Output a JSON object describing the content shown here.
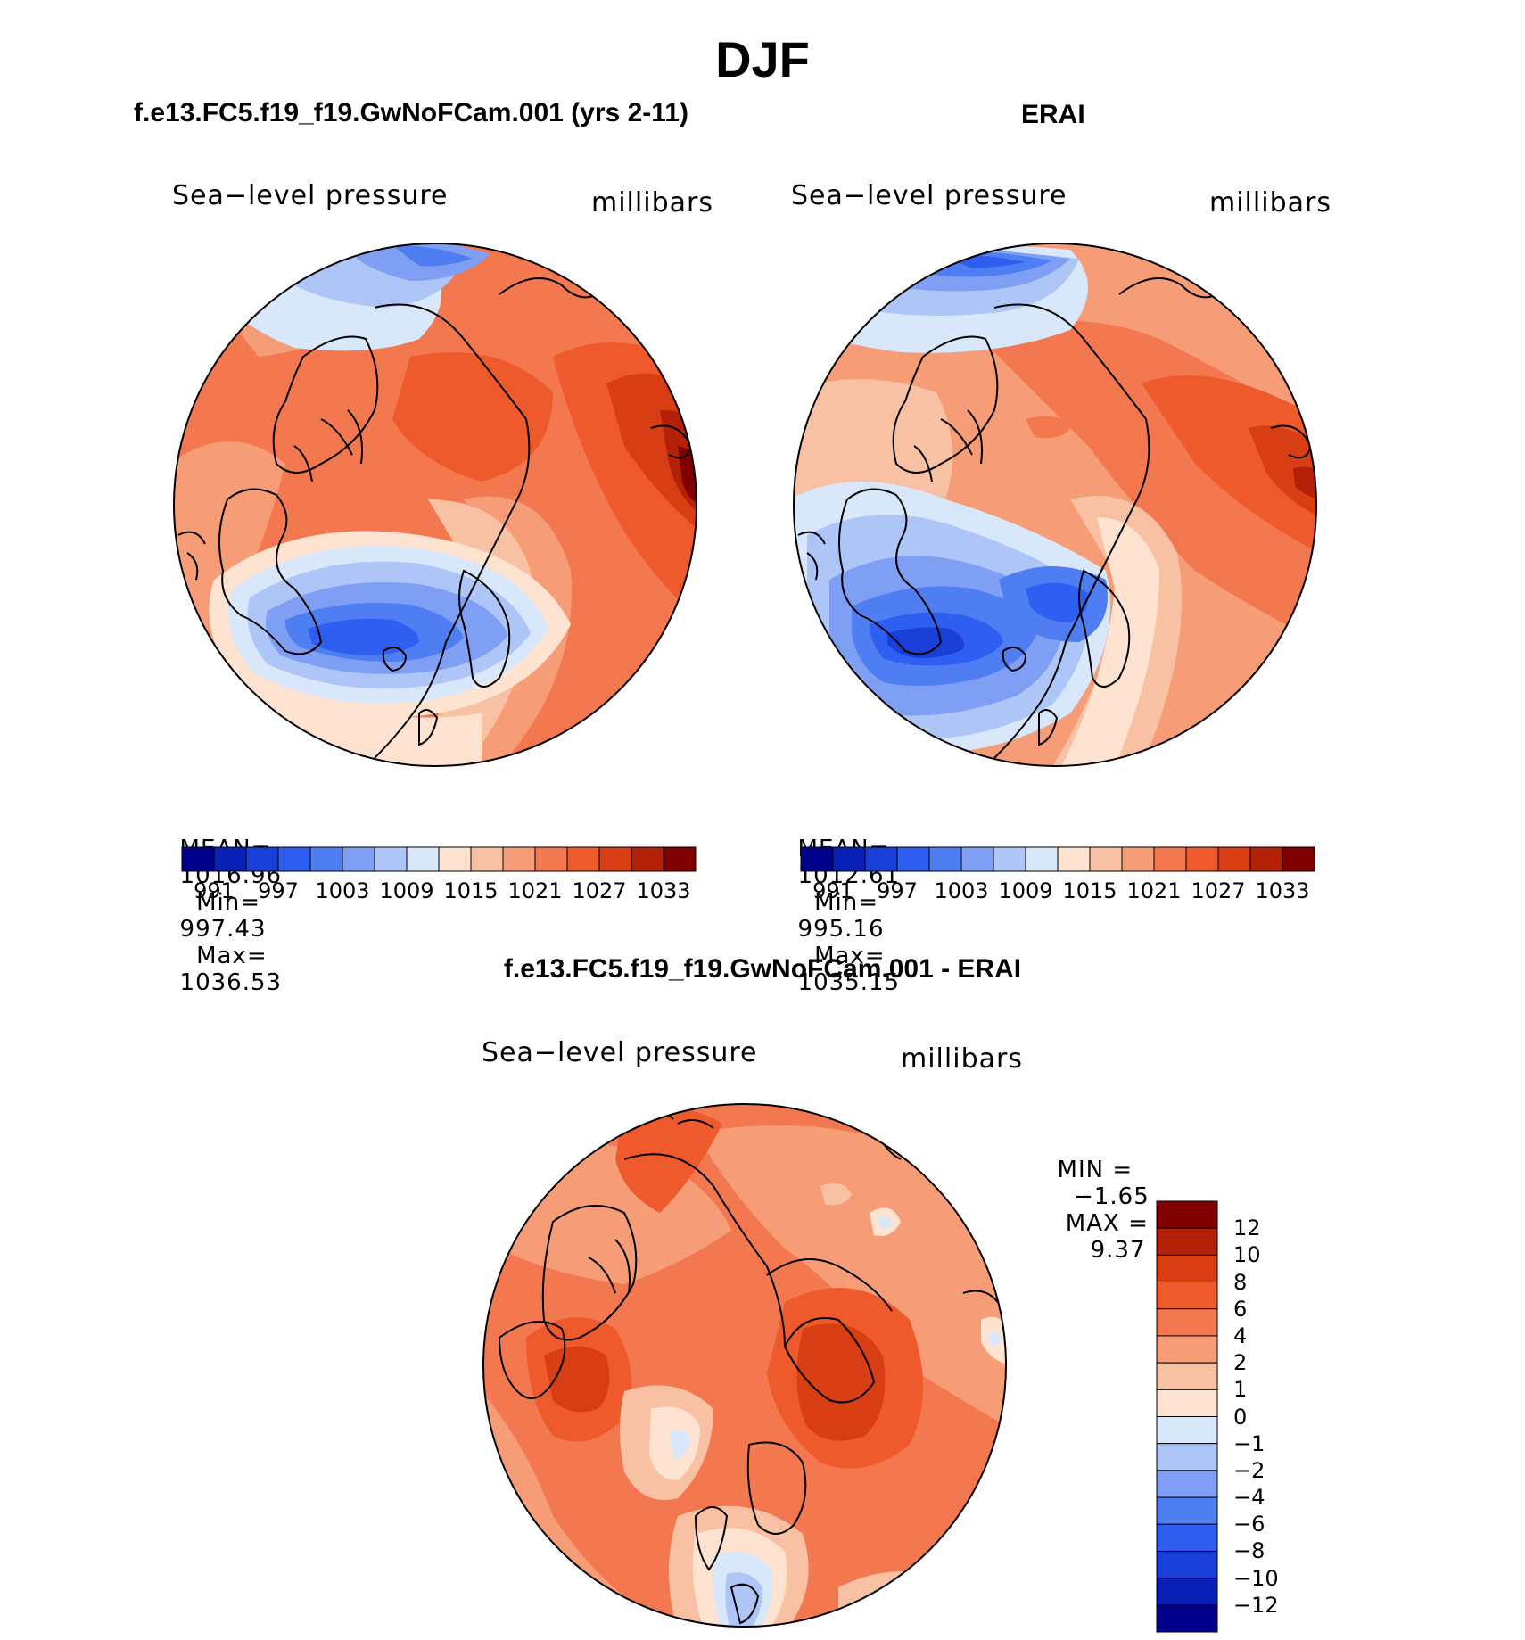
{
  "main_title": "DJF",
  "panels": {
    "left": {
      "title": "f.e13.FC5.f19_f19.GwNoFCam.001 (yrs 2-11)",
      "variable": "Sea−level pressure",
      "units": "millibars",
      "stats": {
        "mean_label": "MEAN=",
        "mean_value": "1016.96",
        "min_label": "Min=",
        "min_value": "997.43",
        "max_label": "Max=",
        "max_value": "1036.53"
      }
    },
    "right": {
      "title": "ERAI",
      "variable": "Sea−level pressure",
      "units": "millibars",
      "stats": {
        "mean_label": "MEAN=",
        "mean_value": "1012.61",
        "min_label": "Min=",
        "min_value": "995.16",
        "max_label": "Max=",
        "max_value": "1035.15"
      }
    },
    "diff": {
      "title": "f.e13.FC5.f19_f19.GwNoFCam.001 - ERAI",
      "variable": "Sea−level pressure",
      "units": "millibars",
      "minmax": {
        "min_label": "MIN =",
        "min_value": "−1.65",
        "max_label": "MAX =",
        "max_value": "9.37"
      }
    }
  },
  "abs_colorbar": {
    "colors": [
      "#00008b",
      "#0a1fb5",
      "#1a3fd8",
      "#2e5ff0",
      "#4f7ef2",
      "#7f9ff4",
      "#aec5f7",
      "#d9e7fb",
      "#fde3d0",
      "#f9c1a3",
      "#f69d78",
      "#f4784f",
      "#ee5a2b",
      "#d83d13",
      "#b32208",
      "#7e0000"
    ],
    "labels": [
      "991",
      "997",
      "1003",
      "1009",
      "1015",
      "1021",
      "1027",
      "1033"
    ]
  },
  "diff_colorbar": {
    "colors": [
      "#7e0000",
      "#b32208",
      "#d83d13",
      "#ee5a2b",
      "#f4784f",
      "#f69d78",
      "#f9c1a3",
      "#fde3d0",
      "#d9e7fb",
      "#aec5f7",
      "#7f9ff4",
      "#4f7ef2",
      "#2e5ff0",
      "#1a3fd8",
      "#0a1fb5",
      "#00008b"
    ],
    "labels": [
      "12",
      "10",
      "8",
      "6",
      "4",
      "2",
      "1",
      "0",
      "−1",
      "−2",
      "−4",
      "−6",
      "−8",
      "−10",
      "−12"
    ]
  }
}
